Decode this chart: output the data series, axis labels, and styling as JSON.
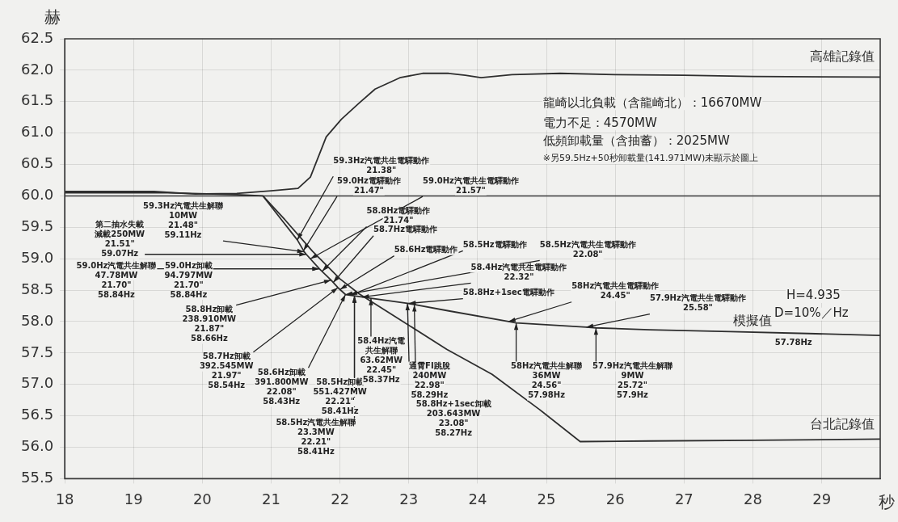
{
  "chart_data": {
    "type": "line",
    "xlabel": "秒",
    "ylabel": "赫",
    "xlim": [
      18,
      29.85
    ],
    "xticks": [
      18,
      19,
      20,
      21,
      22,
      23,
      24,
      25,
      26,
      27,
      28,
      29
    ],
    "ylim": [
      55.5,
      62.5
    ],
    "yticks": [
      {
        "value": 55.5,
        "label": "55.5"
      },
      {
        "value": 56,
        "label": "56.0"
      },
      {
        "value": 56.5,
        "label": "56.5"
      },
      {
        "value": 57,
        "label": "57.0"
      },
      {
        "value": 57.5,
        "label": "57.5"
      },
      {
        "value": 58,
        "label": "58.0"
      },
      {
        "value": 58.5,
        "label": "58.5"
      },
      {
        "value": 59,
        "label": "59.0"
      },
      {
        "value": 59.5,
        "label": "59.5"
      },
      {
        "value": 60,
        "label": "60.0"
      },
      {
        "value": 60.5,
        "label": "60.5"
      },
      {
        "value": 61,
        "label": "61.0"
      },
      {
        "value": 61.5,
        "label": "61.5"
      },
      {
        "value": 62,
        "label": "62.0"
      },
      {
        "value": 62.5,
        "label": "62.5"
      }
    ],
    "grid": true,
    "legend": false,
    "marker": "none",
    "line_style": "solid",
    "ref_lines": [
      {
        "axis": "y",
        "value": 60,
        "color": "#3a3a3a"
      }
    ],
    "series": [
      {
        "name": "高雄記錄值",
        "color": "#2e2e2e",
        "x": [
          18,
          19.3,
          19.9,
          20.5,
          21,
          21.39,
          21.57,
          21.8,
          22.02,
          22.28,
          22.51,
          22.87,
          23.2,
          23.58,
          23.82,
          24.05,
          24.5,
          25.2,
          26,
          27,
          28,
          29.85
        ],
        "values": [
          60.07,
          60.07,
          60.03,
          60.04,
          60.08,
          60.12,
          60.3,
          60.94,
          61.22,
          61.48,
          61.7,
          61.88,
          61.95,
          61.95,
          61.92,
          61.88,
          61.93,
          61.95,
          61.93,
          61.92,
          61.9,
          61.89
        ]
      },
      {
        "name": "台北記錄值",
        "color": "#2e2e2e",
        "x": [
          18,
          19.5,
          20.5,
          20.88,
          21.2,
          21.6,
          22,
          22.28,
          22.8,
          23.55,
          24.21,
          24.9,
          25.49,
          26.5,
          28,
          29.85
        ],
        "values": [
          60.05,
          60.05,
          60.02,
          60.0,
          59.62,
          59.12,
          58.68,
          58.44,
          58.08,
          57.56,
          57.16,
          56.6,
          56.09,
          56.1,
          56.11,
          56.13
        ]
      },
      {
        "name": "模擬值",
        "color": "#2e2e2e",
        "x": [
          20.88,
          21.15,
          21.38,
          21.48,
          21.51,
          21.7,
          21.87,
          21.97,
          22.08,
          22.21,
          22.45,
          22.98,
          23.08,
          23.58,
          24.45,
          24.56,
          25.58,
          25.72,
          26.5,
          27.67,
          28.8,
          29.85
        ],
        "values": [
          60.0,
          59.62,
          59.3,
          59.11,
          59.07,
          58.84,
          58.66,
          58.54,
          58.43,
          58.41,
          58.37,
          58.29,
          58.27,
          58.17,
          58.0,
          57.98,
          57.91,
          57.9,
          57.87,
          57.84,
          57.81,
          57.78
        ]
      }
    ],
    "annotations": [
      "龍崎以北負載（含龍崎北）：16670MW",
      "電力不足：4570MW",
      "低頻卸載量（含抽蓄）：2025MW",
      "※另59.5Hz+50秒卸載量(141.971MW)未顯示於圖上",
      "H=4.935",
      "D=10%／Hz",
      "57.78Hz",
      {
        "text": "59.3Hz汽電共生解聯\n10MW\n21.48\"\n59.11Hz",
        "x": 21.48,
        "y": 59.11
      },
      {
        "text": "第二抽水失載減載250MW\n21.51\"\n59.07Hz",
        "x": 21.51,
        "y": 59.07
      },
      {
        "text": "59.0Hz汽電共生解聯\n47.78MW\n21.70\"\n58.84Hz",
        "x": 21.7,
        "y": 58.84
      },
      {
        "text": "59.0Hz卸載\n94.797MW\n21.70\"\n58.84Hz",
        "x": 21.7,
        "y": 58.84
      },
      {
        "text": "58.8Hz卸載\n238.910MW\n21.87\"\n58.66Hz",
        "x": 21.87,
        "y": 58.66
      },
      {
        "text": "58.7Hz卸載\n392.545MW\n21.97\"\n58.54Hz",
        "x": 21.97,
        "y": 58.54
      },
      {
        "text": "58.6Hz卸載\n391.800MW\n22.08\"\n58.43Hz",
        "x": 22.08,
        "y": 58.43
      },
      {
        "text": "58.5Hz卸載\n551.427MW\n22.21\"\n58.41Hz",
        "x": 22.21,
        "y": 58.41
      },
      {
        "text": "58.5Hz汽電共生解聯\n23.3MW\n22.21\"\n58.41Hz",
        "x": 22.21,
        "y": 58.41
      },
      {
        "text": "58.4Hz汽電共生解聯\n63.62MW\n22.45\"\n58.37Hz",
        "x": 22.45,
        "y": 58.37
      },
      {
        "text": "通霄FI跳脫\n240MW\n22.98\"\n58.29Hz",
        "x": 22.98,
        "y": 58.29
      },
      {
        "text": "58.8Hz+1sec卸載\n203.643MW\n23.08\"\n58.27Hz",
        "x": 23.08,
        "y": 58.27
      },
      {
        "text": "58Hz汽電共生解聯\n36MW\n24.56\"\n57.98Hz",
        "x": 24.56,
        "y": 57.98
      },
      {
        "text": "57.9Hz汽電共生解聯\n9MW\n25.72\"\n57.9Hz",
        "x": 25.72,
        "y": 57.9
      },
      {
        "text": "59.3Hz汽電共生電驛動作\n21.38\"",
        "x": 21.38,
        "y": 59.3
      },
      {
        "text": "59.0Hz電驛動作\n21.47\"",
        "x": 21.47,
        "y": 59.13
      },
      {
        "text": "59.0Hz汽電共生電驛動作\n21.57\"",
        "x": 21.57,
        "y": 59.0
      },
      {
        "text": "58.8Hz電驛動作\n21.74\"",
        "x": 21.74,
        "y": 58.8
      },
      {
        "text": "58.7Hz電驛動作",
        "x": 21.9,
        "y": 58.62
      },
      {
        "text": "58.6Hz電驛動作",
        "x": 22.0,
        "y": 58.51
      },
      {
        "text": "58.5Hz電驛動作",
        "x": 22.15,
        "y": 58.42
      },
      {
        "text": "58.5Hz汽電共生電驛動作\n22.08\"",
        "x": 22.08,
        "y": 58.43
      },
      {
        "text": "58.4Hz汽電共生電驛動作\n22.32\"",
        "x": 22.32,
        "y": 58.39
      },
      {
        "text": "58.8Hz+1sec電驛動作",
        "x": 23.0,
        "y": 58.29
      },
      {
        "text": "58Hz汽電共生電驛動作\n24.45\"",
        "x": 24.45,
        "y": 58.0
      },
      {
        "text": "57.9Hz汽電共生電驛動作\n25.58\"",
        "x": 25.58,
        "y": 57.91
      }
    ]
  }
}
